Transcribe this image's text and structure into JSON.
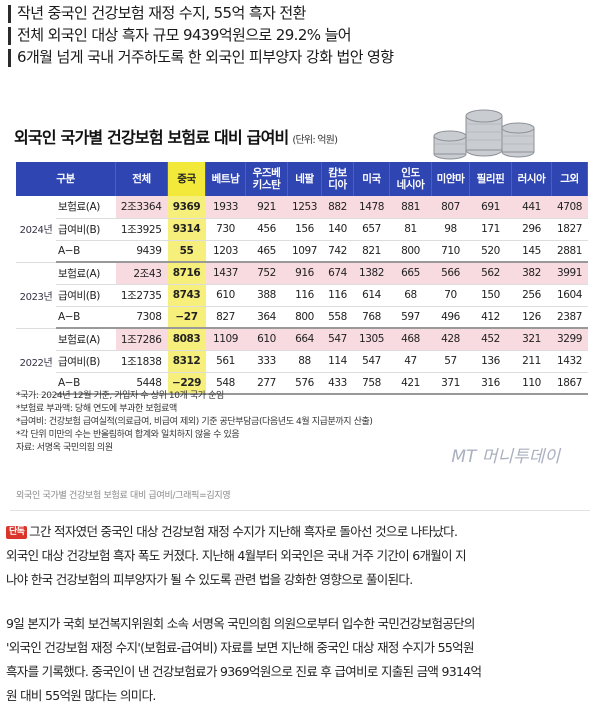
{
  "headlines": [
    "작년 중국인 건강보험 재정 수지, 55억 흑자 전환",
    "전체 외국인 대상 흑자 규모 9439억원으로 29.2% 늘어",
    "6개월 넘게 국내 거주하도록 한 외국인 피부양자 강화 법안 영향"
  ],
  "infographic": {
    "title": "외국인 국가별 건강보험 보험료 대비 급여비",
    "unit": "(단위: 억원)",
    "header": {
      "col0": "구분",
      "cols": [
        "전체",
        "중국",
        "베트남",
        "우즈베\n키스탄",
        "네팔",
        "캄보\n디아",
        "미국",
        "인도\n네시아",
        "미얀마",
        "필리핀",
        "러시아",
        "그외"
      ]
    },
    "groups": [
      {
        "year": "2024년",
        "rows": [
          {
            "label": "보험료(A)",
            "values": [
              "2조3364",
              "9369",
              "1933",
              "921",
              "1253",
              "882",
              "1478",
              "881",
              "807",
              "691",
              "441",
              "4708"
            ]
          },
          {
            "label": "급여비(B)",
            "values": [
              "1조3925",
              "9314",
              "730",
              "456",
              "156",
              "140",
              "657",
              "81",
              "98",
              "171",
              "296",
              "1827"
            ]
          },
          {
            "label": "A−B",
            "values": [
              "9439",
              "55",
              "1203",
              "465",
              "1097",
              "742",
              "821",
              "800",
              "710",
              "520",
              "145",
              "2881"
            ]
          }
        ]
      },
      {
        "year": "2023년",
        "rows": [
          {
            "label": "보험료(A)",
            "values": [
              "2조43",
              "8716",
              "1437",
              "752",
              "916",
              "674",
              "1382",
              "665",
              "566",
              "562",
              "382",
              "3991"
            ]
          },
          {
            "label": "급여비(B)",
            "values": [
              "1조2735",
              "8743",
              "610",
              "388",
              "116",
              "116",
              "614",
              "68",
              "70",
              "150",
              "256",
              "1604"
            ]
          },
          {
            "label": "A−B",
            "values": [
              "7308",
              "−27",
              "827",
              "364",
              "800",
              "558",
              "768",
              "597",
              "496",
              "412",
              "126",
              "2387"
            ]
          }
        ]
      },
      {
        "year": "2022년",
        "rows": [
          {
            "label": "보험료(A)",
            "values": [
              "1조7286",
              "8083",
              "1109",
              "610",
              "664",
              "547",
              "1305",
              "468",
              "428",
              "452",
              "321",
              "3299"
            ]
          },
          {
            "label": "급여비(B)",
            "values": [
              "1조1838",
              "8312",
              "561",
              "333",
              "88",
              "114",
              "547",
              "47",
              "57",
              "136",
              "211",
              "1432"
            ]
          },
          {
            "label": "A−B",
            "values": [
              "5448",
              "−229",
              "548",
              "277",
              "576",
              "433",
              "758",
              "421",
              "371",
              "316",
              "110",
              "1867"
            ]
          }
        ]
      }
    ],
    "notes": [
      "*국가: 2024년 12월 기준, 가입자 수 상위 10개 국가 순임",
      "*보험료 부과액: 당해 연도에 부과한 보험료액",
      "*급여비: 건강보험 급여실적(의료급여, 비급여 제외) 기준 공단부담금(다음년도 4월 지급분까지 산출)",
      "*각 단위 미만의 수는 반올림하여 합계와 일치하지 않을 수 있음",
      "자료: 서명옥 국민의힘 의원"
    ],
    "watermark": "MT 머니투데이",
    "credit": "외국인 국가별 건강보험 보험료 대비 급여비/그래픽=김지영"
  },
  "article": {
    "badge": "단독",
    "p1": [
      "그간 적자였던 중국인 대상 건강보험 재정 수지가 지난해 흑자로 돌아선 것으로 나타났다.",
      "외국인 대상 건강보험 흑자 폭도 커졌다. 지난해 4월부터 외국인은 국내 거주 기간이 6개월이 지",
      "나야 한국 건강보험의 피부양자가 될 수 있도록 관련 법을 강화한 영향으로 풀이된다."
    ],
    "p2": [
      "9일 본지가 국회 보건복지위원회 소속 서명옥 국민의힘 의원으로부터 입수한 국민건강보험공단의",
      "'외국인 건강보험 재정 수지'(보험료-급여비) 자료를 보면 지난해 중국인 대상 재정 수지가 55억원",
      "흑자를 기록했다. 중국인이 낸 건강보험료가 9369억원으로 진료 후 급여비로 지출된 금액 9314억",
      "원 대비 55억원 많다는 의미다."
    ]
  }
}
